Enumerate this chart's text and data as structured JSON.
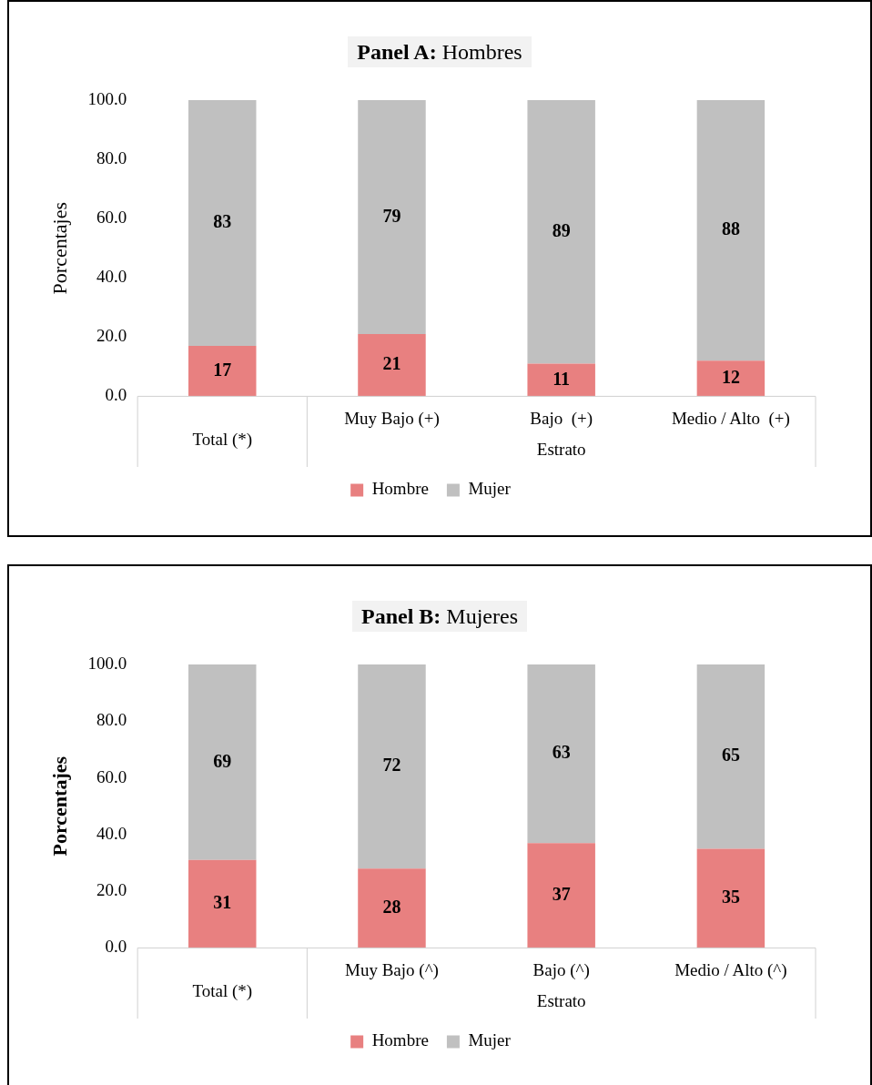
{
  "chart_data": [
    {
      "type": "bar",
      "title": "Panel A: Hombres",
      "ylabel": "Porcentajes",
      "xlabel": "Estrato",
      "stacked": true,
      "data_labels": true,
      "legend": "bottom",
      "grid": false,
      "categories": [
        "Total (*)",
        "Muy Bajo (+)",
        "Bajo  (+)",
        "Medio / Alto  (+)"
      ],
      "ylim": [
        0,
        100
      ],
      "yticks": [
        {
          "value": 0,
          "label": "0.0"
        },
        {
          "value": 20,
          "label": "20.0"
        },
        {
          "value": 40,
          "label": "40.0"
        },
        {
          "value": 60,
          "label": "60.0"
        },
        {
          "value": 80,
          "label": "80.0"
        },
        {
          "value": 100,
          "label": "100.0"
        }
      ],
      "series": [
        {
          "name": "Hombre",
          "color": "#e88080",
          "values": [
            17,
            21,
            11,
            12
          ]
        },
        {
          "name": "Mujer",
          "color": "#c0c0c0",
          "values": [
            83,
            79,
            89,
            88
          ]
        }
      ]
    },
    {
      "type": "bar",
      "title": "Panel B: Mujeres",
      "ylabel": "Porcentajes",
      "xlabel": "Estrato",
      "stacked": true,
      "data_labels": true,
      "legend": "bottom",
      "grid": false,
      "categories": [
        "Total (*)",
        "Muy Bajo (^)",
        "Bajo (^)",
        "Medio / Alto (^)"
      ],
      "ylim": [
        0,
        100
      ],
      "yticks": [
        {
          "value": 0,
          "label": "0.0"
        },
        {
          "value": 20,
          "label": "20.0"
        },
        {
          "value": 40,
          "label": "40.0"
        },
        {
          "value": 60,
          "label": "60.0"
        },
        {
          "value": 80,
          "label": "80.0"
        },
        {
          "value": 100,
          "label": "100.0"
        }
      ],
      "series": [
        {
          "name": "Hombre",
          "color": "#e88080",
          "values": [
            31,
            28,
            37,
            35
          ]
        },
        {
          "name": "Mujer",
          "color": "#c0c0c0",
          "values": [
            69,
            72,
            63,
            65
          ]
        }
      ]
    }
  ]
}
